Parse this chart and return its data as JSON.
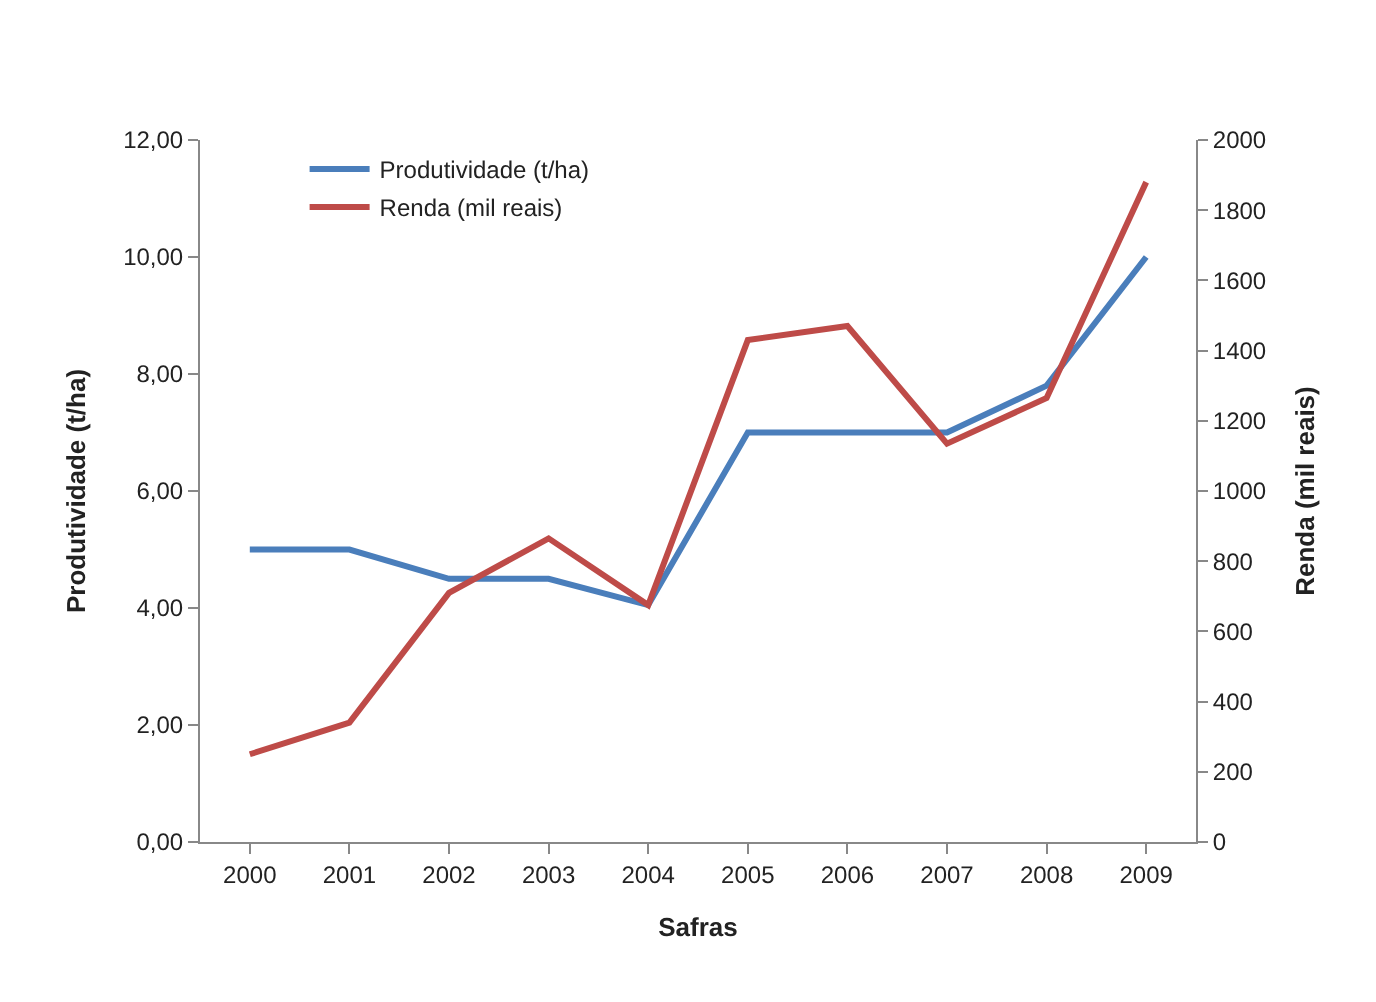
{
  "chart_data": {
    "type": "line",
    "xlabel": "Safras",
    "ylabel": "Produtividade (t/ha)",
    "y2label": "Renda (mil reais)",
    "categories": [
      "2000",
      "2001",
      "2002",
      "2003",
      "2004",
      "2005",
      "2006",
      "2007",
      "2008",
      "2009"
    ],
    "series": [
      {
        "name": "Produtividade (t/ha)",
        "color": "#4a7ebb",
        "values": [
          5.0,
          5.0,
          4.5,
          4.5,
          4.05,
          7.0,
          7.0,
          7.0,
          7.8,
          10.0
        ]
      },
      {
        "name": "Renda (mil reais)",
        "color": "#be4b48",
        "axis": "y2",
        "values": [
          250,
          340,
          710,
          865,
          675,
          1430,
          1470,
          1135,
          1265,
          1880
        ]
      }
    ],
    "ylim": [
      0,
      12
    ],
    "yticks": [
      {
        "value": 0,
        "label": "0,00"
      },
      {
        "value": 2,
        "label": "2,00"
      },
      {
        "value": 4,
        "label": "4,00"
      },
      {
        "value": 6,
        "label": "6,00"
      },
      {
        "value": 8,
        "label": "8,00"
      },
      {
        "value": 10,
        "label": "10,00"
      },
      {
        "value": 12,
        "label": "12,00"
      }
    ],
    "y2lim": [
      0,
      2000
    ],
    "y2ticks": [
      0,
      200,
      400,
      600,
      800,
      1000,
      1200,
      1400,
      1600,
      1800,
      2000
    ],
    "legend": "top left",
    "marker": "none",
    "line_style": "solid"
  }
}
